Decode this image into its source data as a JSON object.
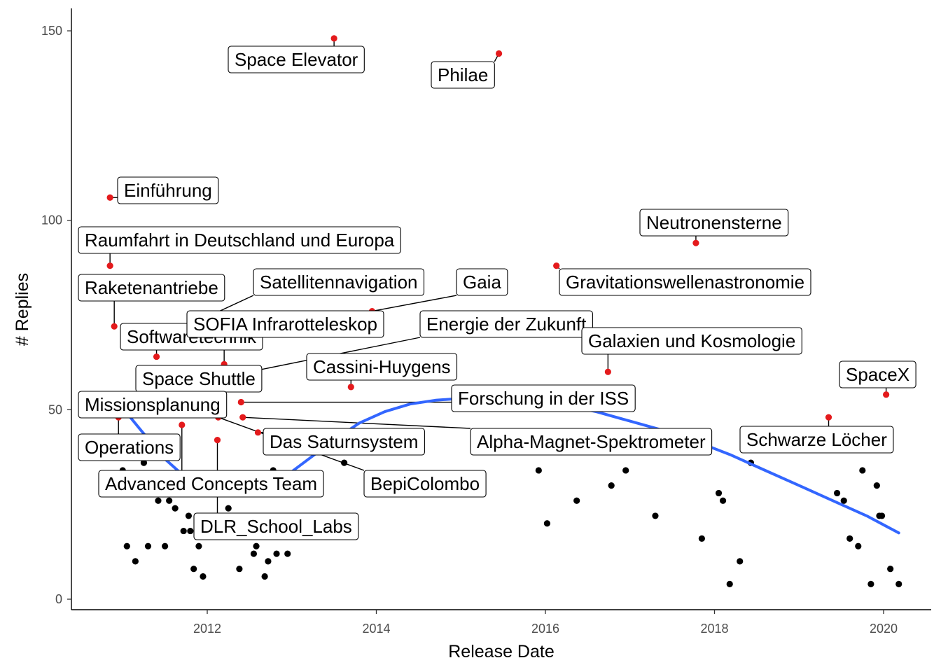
{
  "colors": {
    "highlight": "#e41a1c",
    "point": "#000000",
    "smooth": "#3366ff",
    "axis": "#000000",
    "tick_text": "#4d4d4d"
  },
  "chart_data": {
    "type": "scatter",
    "title": "",
    "xlabel": "Release Date",
    "ylabel": "# Replies",
    "xlim": [
      2010.6,
      2020.65
    ],
    "ylim": [
      -3,
      156
    ],
    "x_ticks": [
      2012,
      2014,
      2016,
      2018,
      2020
    ],
    "y_ticks": [
      0,
      50,
      100,
      150
    ],
    "grid": false,
    "legend": "none",
    "labeled_points": [
      {
        "label": "Space Elevator",
        "x": 2013.5,
        "y": 148
      },
      {
        "label": "Philae",
        "x": 2015.45,
        "y": 144
      },
      {
        "label": "Einführung",
        "x": 2010.85,
        "y": 106
      },
      {
        "label": "Raumfahrt in Deutschland und Europa",
        "x": 2010.85,
        "y": 88
      },
      {
        "label": "Neutronensterne",
        "x": 2017.78,
        "y": 94
      },
      {
        "label": "Gravitationswellenastronomie",
        "x": 2016.13,
        "y": 88
      },
      {
        "label": "Raketenantriebe",
        "x": 2010.9,
        "y": 72
      },
      {
        "label": "Satellitennavigation",
        "x": 2011.95,
        "y": 74
      },
      {
        "label": "Gaia",
        "x": 2013.95,
        "y": 76
      },
      {
        "label": "Softwaretechnik",
        "x": 2011.4,
        "y": 64
      },
      {
        "label": "SOFIA Infrarotteleskop",
        "x": 2012.2,
        "y": 62
      },
      {
        "label": "Energie der Zukunft",
        "x": 2012.5,
        "y": 60
      },
      {
        "label": "Galaxien und Kosmologie",
        "x": 2016.74,
        "y": 60
      },
      {
        "label": "Space Shuttle",
        "x": 2011.7,
        "y": 58
      },
      {
        "label": "Cassini-Huygens",
        "x": 2013.7,
        "y": 56
      },
      {
        "label": "SpaceX",
        "x": 2020.03,
        "y": 54
      },
      {
        "label": "Forschung in der ISS",
        "x": 2012.4,
        "y": 52
      },
      {
        "label": "Missionsplanung",
        "x": 2011.0,
        "y": 49
      },
      {
        "label": "Alpha-Magnet-Spektrometer",
        "x": 2012.42,
        "y": 48
      },
      {
        "label": "Operations",
        "x": 2010.95,
        "y": 48
      },
      {
        "label": "Das Saturnsystem",
        "x": 2012.6,
        "y": 44
      },
      {
        "label": "Schwarze Löcher",
        "x": 2019.35,
        "y": 48
      },
      {
        "label": "BepiColombo",
        "x": 2012.13,
        "y": 48
      },
      {
        "label": "Advanced Concepts Team",
        "x": 2011.7,
        "y": 46
      },
      {
        "label": "DLR_School_Labs",
        "x": 2012.12,
        "y": 42
      }
    ],
    "points": [
      {
        "x": 2011.0,
        "y": 34
      },
      {
        "x": 2011.05,
        "y": 14
      },
      {
        "x": 2011.15,
        "y": 10
      },
      {
        "x": 2011.25,
        "y": 36
      },
      {
        "x": 2011.3,
        "y": 14
      },
      {
        "x": 2011.42,
        "y": 26
      },
      {
        "x": 2011.5,
        "y": 14
      },
      {
        "x": 2011.55,
        "y": 26
      },
      {
        "x": 2011.62,
        "y": 24
      },
      {
        "x": 2011.72,
        "y": 18
      },
      {
        "x": 2011.78,
        "y": 22
      },
      {
        "x": 2011.8,
        "y": 18
      },
      {
        "x": 2011.84,
        "y": 8
      },
      {
        "x": 2011.9,
        "y": 14
      },
      {
        "x": 2011.95,
        "y": 6
      },
      {
        "x": 2012.25,
        "y": 24
      },
      {
        "x": 2012.38,
        "y": 8
      },
      {
        "x": 2012.55,
        "y": 12
      },
      {
        "x": 2012.58,
        "y": 14
      },
      {
        "x": 2012.68,
        "y": 6
      },
      {
        "x": 2012.72,
        "y": 10
      },
      {
        "x": 2012.78,
        "y": 34
      },
      {
        "x": 2012.82,
        "y": 12
      },
      {
        "x": 2012.95,
        "y": 12
      },
      {
        "x": 2013.62,
        "y": 36
      },
      {
        "x": 2015.92,
        "y": 34
      },
      {
        "x": 2016.02,
        "y": 20
      },
      {
        "x": 2016.37,
        "y": 26
      },
      {
        "x": 2016.78,
        "y": 30
      },
      {
        "x": 2016.95,
        "y": 34
      },
      {
        "x": 2017.3,
        "y": 22
      },
      {
        "x": 2017.85,
        "y": 16
      },
      {
        "x": 2018.05,
        "y": 28
      },
      {
        "x": 2018.1,
        "y": 26
      },
      {
        "x": 2018.18,
        "y": 4
      },
      {
        "x": 2018.3,
        "y": 10
      },
      {
        "x": 2018.43,
        "y": 36
      },
      {
        "x": 2019.45,
        "y": 28
      },
      {
        "x": 2019.53,
        "y": 26
      },
      {
        "x": 2019.6,
        "y": 16
      },
      {
        "x": 2019.7,
        "y": 14
      },
      {
        "x": 2019.75,
        "y": 34
      },
      {
        "x": 2019.85,
        "y": 4
      },
      {
        "x": 2019.92,
        "y": 30
      },
      {
        "x": 2019.95,
        "y": 22
      },
      {
        "x": 2019.98,
        "y": 22
      },
      {
        "x": 2020.08,
        "y": 8
      },
      {
        "x": 2020.18,
        "y": 4
      }
    ],
    "smooth_line": [
      {
        "x": 2010.87,
        "y": 54
      },
      {
        "x": 2011.2,
        "y": 45
      },
      {
        "x": 2011.5,
        "y": 37
      },
      {
        "x": 2011.8,
        "y": 31
      },
      {
        "x": 2012.1,
        "y": 28
      },
      {
        "x": 2012.3,
        "y": 27.5
      },
      {
        "x": 2012.6,
        "y": 28.5
      },
      {
        "x": 2012.9,
        "y": 32
      },
      {
        "x": 2013.2,
        "y": 37
      },
      {
        "x": 2013.5,
        "y": 42
      },
      {
        "x": 2013.8,
        "y": 46.5
      },
      {
        "x": 2014.1,
        "y": 49.5
      },
      {
        "x": 2014.4,
        "y": 51.5
      },
      {
        "x": 2014.7,
        "y": 52.5
      },
      {
        "x": 2015.0,
        "y": 53
      },
      {
        "x": 2015.4,
        "y": 53
      },
      {
        "x": 2015.8,
        "y": 52.5
      },
      {
        "x": 2016.2,
        "y": 51.3
      },
      {
        "x": 2016.6,
        "y": 49.5
      },
      {
        "x": 2017.0,
        "y": 47
      },
      {
        "x": 2017.4,
        "y": 44.5
      },
      {
        "x": 2017.8,
        "y": 41.5
      },
      {
        "x": 2018.2,
        "y": 38
      },
      {
        "x": 2018.6,
        "y": 34
      },
      {
        "x": 2019.0,
        "y": 30
      },
      {
        "x": 2019.4,
        "y": 26
      },
      {
        "x": 2019.8,
        "y": 22
      },
      {
        "x": 2020.18,
        "y": 17.5
      }
    ]
  }
}
